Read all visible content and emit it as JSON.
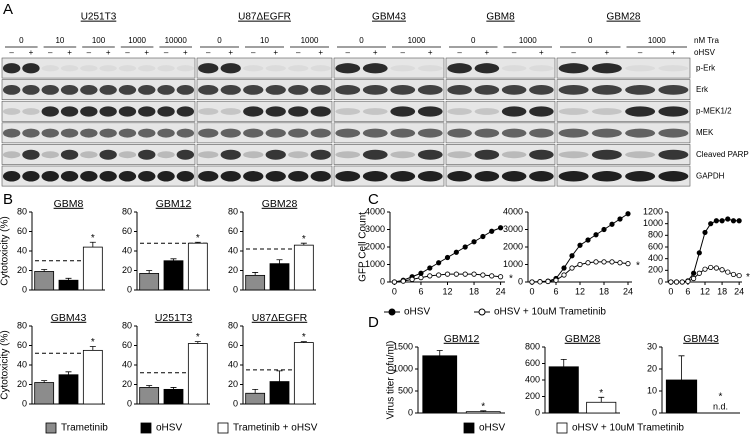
{
  "panel_labels": [
    "A",
    "B",
    "C",
    "D"
  ],
  "blot": {
    "cell_lines": [
      {
        "name": "U251T3",
        "doses": [
          "0",
          "10",
          "100",
          "1000",
          "10000"
        ]
      },
      {
        "name": "U87ΔEGFR",
        "doses": [
          "0",
          "10",
          "1000"
        ]
      },
      {
        "name": "GBM43",
        "doses": [
          "0",
          "1000"
        ]
      },
      {
        "name": "GBM8",
        "doses": [
          "0",
          "1000"
        ]
      },
      {
        "name": "GBM28",
        "doses": [
          "0",
          "1000"
        ]
      }
    ],
    "treatments": [
      "nM Tra",
      "oHSV"
    ],
    "signs": [
      "–",
      "+"
    ],
    "proteins": [
      "p-Erk",
      "Erk",
      "p-MEK1/2",
      "MEK",
      "Cleaved PARP",
      "GAPDH"
    ]
  },
  "chart_data": [
    {
      "type": "bar",
      "title": "GBM8",
      "ylabel": "Cytotoxicity (%)",
      "ylim": [
        0,
        80
      ],
      "yticks": [
        0,
        20,
        40,
        60,
        80
      ],
      "reference_line": 30,
      "annotation": "*",
      "series": [
        {
          "name": "Trametinib",
          "color": "#8c8c8c",
          "values": [
            19
          ],
          "errors": [
            2
          ]
        },
        {
          "name": "oHSV",
          "color": "#000000",
          "values": [
            10
          ],
          "errors": [
            2
          ]
        },
        {
          "name": "Trametinib + oHSV",
          "color": "#ffffff",
          "values": [
            44
          ],
          "errors": [
            5
          ]
        }
      ]
    },
    {
      "type": "bar",
      "title": "GBM12",
      "ylim": [
        0,
        80
      ],
      "yticks": [
        0,
        20,
        40,
        60,
        80
      ],
      "reference_line": 48,
      "annotation": "*",
      "series": [
        {
          "name": "Trametinib",
          "color": "#8c8c8c",
          "values": [
            17
          ],
          "errors": [
            3
          ]
        },
        {
          "name": "oHSV",
          "color": "#000000",
          "values": [
            30
          ],
          "errors": [
            2
          ]
        },
        {
          "name": "Trametinib + oHSV",
          "color": "#ffffff",
          "values": [
            48
          ],
          "errors": [
            1
          ]
        }
      ]
    },
    {
      "type": "bar",
      "title": "GBM28",
      "ylim": [
        0,
        80
      ],
      "yticks": [
        0,
        20,
        40,
        60,
        80
      ],
      "reference_line": 42,
      "annotation": "*",
      "series": [
        {
          "name": "Trametinib",
          "color": "#8c8c8c",
          "values": [
            15
          ],
          "errors": [
            3
          ]
        },
        {
          "name": "oHSV",
          "color": "#000000",
          "values": [
            27
          ],
          "errors": [
            4
          ]
        },
        {
          "name": "Trametinib + oHSV",
          "color": "#ffffff",
          "values": [
            46
          ],
          "errors": [
            2
          ]
        }
      ]
    },
    {
      "type": "bar",
      "title": "GBM43",
      "ylabel": "Cytotoxicity (%)",
      "ylim": [
        0,
        80
      ],
      "yticks": [
        0,
        20,
        40,
        60,
        80
      ],
      "reference_line": 52,
      "annotation": "*",
      "series": [
        {
          "name": "Trametinib",
          "color": "#8c8c8c",
          "values": [
            22
          ],
          "errors": [
            2
          ]
        },
        {
          "name": "oHSV",
          "color": "#000000",
          "values": [
            30
          ],
          "errors": [
            3
          ]
        },
        {
          "name": "Trametinib + oHSV",
          "color": "#ffffff",
          "values": [
            55
          ],
          "errors": [
            4
          ]
        }
      ]
    },
    {
      "type": "bar",
      "title": "U251T3",
      "ylim": [
        0,
        80
      ],
      "yticks": [
        0,
        20,
        40,
        60,
        80
      ],
      "reference_line": 32,
      "annotation": "*",
      "series": [
        {
          "name": "Trametinib",
          "color": "#8c8c8c",
          "values": [
            17
          ],
          "errors": [
            2
          ]
        },
        {
          "name": "oHSV",
          "color": "#000000",
          "values": [
            15
          ],
          "errors": [
            2
          ]
        },
        {
          "name": "Trametinib + oHSV",
          "color": "#ffffff",
          "values": [
            62
          ],
          "errors": [
            2
          ]
        }
      ]
    },
    {
      "type": "bar",
      "title": "U87ΔEGFR",
      "ylim": [
        0,
        80
      ],
      "yticks": [
        0,
        20,
        40,
        60,
        80
      ],
      "reference_line": 35,
      "annotation": "*",
      "series": [
        {
          "name": "Trametinib",
          "color": "#8c8c8c",
          "values": [
            11
          ],
          "errors": [
            4
          ]
        },
        {
          "name": "oHSV",
          "color": "#000000",
          "values": [
            23
          ],
          "errors": [
            11
          ]
        },
        {
          "name": "Trametinib + oHSV",
          "color": "#ffffff",
          "values": [
            63
          ],
          "errors": [
            1
          ]
        }
      ]
    },
    {
      "type": "line",
      "ylabel": "GFP Cell Count",
      "x": [
        0,
        2,
        4,
        6,
        8,
        10,
        12,
        14,
        16,
        18,
        20,
        22,
        24
      ],
      "xlim": [
        -1,
        25
      ],
      "xticks": [
        0,
        6,
        12,
        18,
        24
      ],
      "ylim": [
        0,
        4000
      ],
      "yticks": [
        0,
        1000,
        2000,
        3000,
        4000
      ],
      "annotation": "*",
      "series": [
        {
          "name": "oHSV",
          "color": "#000000",
          "marker": "filled",
          "values": [
            0,
            100,
            300,
            500,
            800,
            1100,
            1400,
            1700,
            2000,
            2300,
            2600,
            2900,
            3100
          ]
        },
        {
          "name": "oHSV + 10uM Trametinib",
          "color": "#000000",
          "marker": "open",
          "values": [
            0,
            50,
            150,
            250,
            350,
            400,
            450,
            450,
            450,
            450,
            400,
            350,
            300
          ]
        }
      ]
    },
    {
      "type": "line",
      "x": [
        0,
        2,
        4,
        6,
        8,
        10,
        12,
        14,
        16,
        18,
        20,
        22,
        24
      ],
      "xlim": [
        -1,
        25
      ],
      "xticks": [
        0,
        6,
        12,
        18,
        24
      ],
      "ylim": [
        0,
        4000
      ],
      "yticks": [
        0,
        1000,
        2000,
        3000,
        4000
      ],
      "annotation": "*",
      "series": [
        {
          "name": "oHSV",
          "color": "#000000",
          "marker": "filled",
          "values": [
            0,
            20,
            50,
            200,
            800,
            1500,
            2100,
            2400,
            2700,
            3000,
            3300,
            3600,
            3900
          ]
        },
        {
          "name": "oHSV + 10uM Trametinib",
          "color": "#000000",
          "marker": "open",
          "values": [
            0,
            10,
            30,
            100,
            400,
            800,
            1000,
            1100,
            1150,
            1150,
            1150,
            1100,
            1050
          ]
        }
      ]
    },
    {
      "type": "line",
      "x": [
        0,
        2,
        4,
        6,
        8,
        10,
        12,
        14,
        16,
        18,
        20,
        22,
        24
      ],
      "xlim": [
        -1,
        25
      ],
      "xticks": [
        0,
        6,
        12,
        18,
        24
      ],
      "ylim": [
        0,
        1200
      ],
      "yticks": [
        0,
        200,
        400,
        600,
        800,
        1000,
        1200
      ],
      "annotation": "*",
      "series": [
        {
          "name": "oHSV",
          "color": "#000000",
          "marker": "filled",
          "values": [
            0,
            0,
            0,
            20,
            150,
            500,
            850,
            1000,
            1050,
            1050,
            1080,
            1050,
            1050
          ]
        },
        {
          "name": "oHSV + 10uM Trametinib",
          "color": "#000000",
          "marker": "open",
          "values": [
            0,
            0,
            0,
            10,
            60,
            150,
            220,
            250,
            240,
            210,
            170,
            130,
            110
          ]
        }
      ]
    },
    {
      "type": "bar",
      "title": "GBM12",
      "ylabel": "Virus titer (pfu/ml)",
      "ylim": [
        0,
        1500
      ],
      "yticks": [
        0,
        500,
        1000,
        1500
      ],
      "annotation": "*",
      "series": [
        {
          "name": "oHSV",
          "color": "#000000",
          "values": [
            1300
          ],
          "errors": [
            120
          ]
        },
        {
          "name": "oHSV + 10uM Trametinib",
          "color": "#ffffff",
          "values": [
            30
          ],
          "errors": [
            20
          ]
        }
      ]
    },
    {
      "type": "bar",
      "title": "GBM28",
      "ylim": [
        0,
        800
      ],
      "yticks": [
        0,
        200,
        400,
        600,
        800
      ],
      "annotation": "*",
      "series": [
        {
          "name": "oHSV",
          "color": "#000000",
          "values": [
            560
          ],
          "errors": [
            90
          ]
        },
        {
          "name": "oHSV + 10uM Trametinib",
          "color": "#ffffff",
          "values": [
            130
          ],
          "errors": [
            60
          ]
        }
      ]
    },
    {
      "type": "bar",
      "title": "GBM43",
      "ylim": [
        0,
        30
      ],
      "yticks": [
        0,
        10,
        20,
        30
      ],
      "annotation": "*",
      "series": [
        {
          "name": "oHSV",
          "color": "#000000",
          "values": [
            15
          ],
          "errors": [
            11
          ]
        },
        {
          "name": "oHSV + 10uM Trametinib",
          "color": "#ffffff",
          "values": [
            null
          ],
          "errors": [
            null
          ],
          "value_labels": [
            "n.d."
          ]
        }
      ]
    }
  ]
}
